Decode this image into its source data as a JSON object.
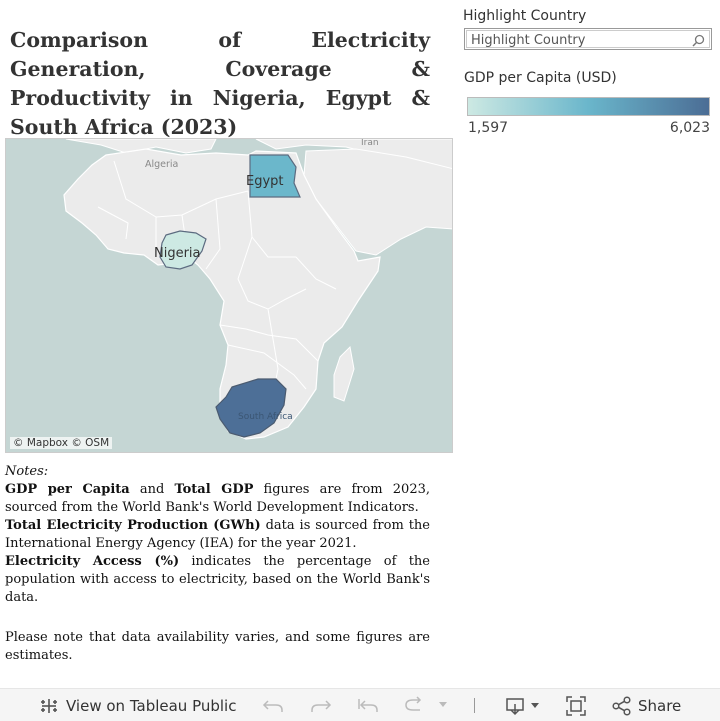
{
  "title": "Comparison of Electricity Generation, Coverage & Productivity in Nigeria, Egypt & South Africa (2023)",
  "highlight": {
    "label": "Highlight Country",
    "placeholder": "Highlight Country",
    "icon": "search-icon"
  },
  "legend": {
    "label": "GDP per Capita (USD)",
    "min": "1,597",
    "max": "6,023",
    "color_low": "#cde9e3",
    "color_mid": "#6ab6cb",
    "color_high": "#4b6d95"
  },
  "map": {
    "attribution": "© Mapbox © OSM",
    "background_labels": [
      "Algeria",
      "Iran"
    ],
    "countries": [
      {
        "name": "Egypt",
        "color": "#6bb7cb"
      },
      {
        "name": "Nigeria",
        "color": "#cde9e3"
      },
      {
        "name": "South Africa",
        "color": "#4d6f97"
      }
    ]
  },
  "notes": {
    "heading": "Notes:",
    "p1_bold1": "GDP per Capita",
    "p1_and": " and ",
    "p1_bold2": "Total GDP",
    "p1_rest": " figures are from 2023, sourced from the World Bank's World Development Indicators.",
    "p2_bold": "Total Electricity Production (GWh)",
    "p2_rest": " data is sourced from the International Energy Agency (IEA) for the year 2021.",
    "p3_bold": "Electricity Access (%)",
    "p3_rest": " indicates the percentage of the population with access to electricity, based on the World Bank's data.",
    "p4": "Please note that data availability varies, and some figures are estimates."
  },
  "toolbar": {
    "view_label": "View on Tableau Public",
    "share_label": "Share",
    "icons": [
      "tableau-logo-icon",
      "undo-icon",
      "redo-icon",
      "revert-icon",
      "refresh-icon",
      "dropdown-icon",
      "download-icon",
      "fullscreen-icon",
      "share-icon"
    ]
  }
}
